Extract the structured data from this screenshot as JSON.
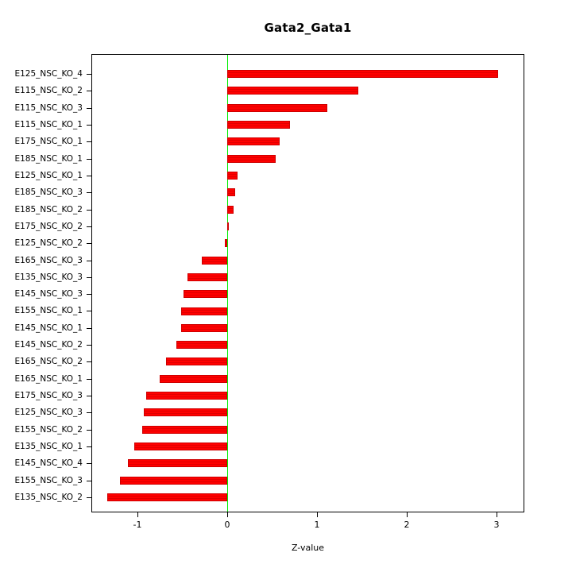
{
  "chart_data": {
    "type": "bar",
    "orientation": "horizontal",
    "title": "Gata2_Gata1",
    "xlabel": "Z-value",
    "categories": [
      "E125_NSC_KO_4",
      "E115_NSC_KO_2",
      "E115_NSC_KO_3",
      "E115_NSC_KO_1",
      "E175_NSC_KO_1",
      "E185_NSC_KO_1",
      "E125_NSC_KO_1",
      "E185_NSC_KO_3",
      "E185_NSC_KO_2",
      "E175_NSC_KO_2",
      "E125_NSC_KO_2",
      "E165_NSC_KO_3",
      "E135_NSC_KO_3",
      "E145_NSC_KO_3",
      "E155_NSC_KO_1",
      "E145_NSC_KO_1",
      "E145_NSC_KO_2",
      "E165_NSC_KO_2",
      "E165_NSC_KO_1",
      "E175_NSC_KO_3",
      "E125_NSC_KO_3",
      "E155_NSC_KO_2",
      "E135_NSC_KO_1",
      "E145_NSC_KO_4",
      "E155_NSC_KO_3",
      "E135_NSC_KO_2"
    ],
    "values": [
      3.02,
      1.46,
      1.12,
      0.7,
      0.59,
      0.54,
      0.12,
      0.09,
      0.07,
      0.01,
      -0.02,
      -0.28,
      -0.44,
      -0.48,
      -0.51,
      -0.51,
      -0.56,
      -0.68,
      -0.75,
      -0.9,
      -0.93,
      -0.94,
      -1.03,
      -1.1,
      -1.19,
      -1.33
    ],
    "xlim": [
      -1.5,
      3.3
    ],
    "xticks": [
      -1,
      0,
      1,
      2,
      3
    ],
    "bar_color": "#FF0000",
    "bar_border_color": "#CC0000",
    "zero_line_color": "#00EE00",
    "grid": false,
    "legend": "none"
  }
}
